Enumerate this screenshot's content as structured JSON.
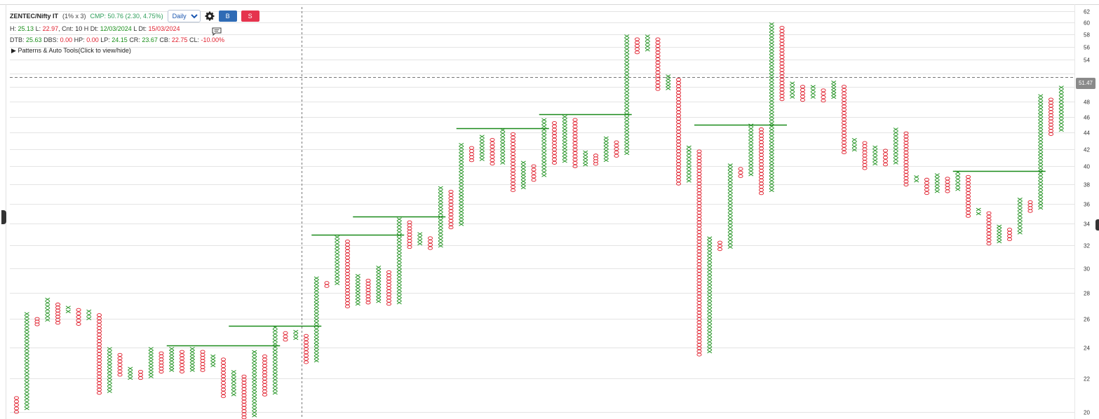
{
  "header": {
    "symbol": "ZENTEC/Nifty IT",
    "box_info": "(1% x 3)",
    "cmp": "CMP: 50.76 (2.30, 4.75%)",
    "interval": "Daily",
    "interval_options": [
      "Daily"
    ],
    "buy_label": "B",
    "sell_label": "S",
    "settings_icon": "gear-icon",
    "comment_icon": "comment-icon",
    "line2": {
      "h_label": "H:",
      "h_value": "25.13",
      "l_label": "L:",
      "l_value": "22.97",
      "cnt_label": "Cnt:",
      "cnt_value": "10",
      "hdt_label": "H Dt:",
      "hdt_value": "12/03/2024",
      "ldt_label": "L Dt:",
      "ldt_value": "15/03/2024"
    },
    "line3": {
      "dtb_label": "DTB:",
      "dtb_value": "25.63",
      "dbs_label": "DBS:",
      "dbs_value": "0.00",
      "hp_label": "HP:",
      "hp_value": "0.00",
      "lp_label": "LP:",
      "lp_value": "24.15",
      "cr_label": "CR:",
      "cr_value": "23.67",
      "cb_label": "CB:",
      "cb_value": "22.75",
      "cl_label": "CL:",
      "cl_value": "-10.00%"
    },
    "patterns_toggle": "Patterns & Auto Tools(Click to view/hide)",
    "patterns_icon": "triangle-right-icon"
  },
  "price_tag": "51.47",
  "colors": {
    "x": "#1a8f1a",
    "o": "#e0202e",
    "resistance": "#1a8a1a",
    "grid": "#e4e4e4",
    "axis_text": "#333333"
  },
  "chart_data": {
    "type": "point-and-figure",
    "box_size_pct": 1,
    "reversal": 3,
    "scale": "log",
    "ylim": [
      19.6,
      63
    ],
    "y_ticks": [
      20,
      22,
      24,
      26,
      28,
      30,
      32,
      34,
      36,
      38,
      40,
      42,
      44,
      46,
      48,
      50,
      52,
      54,
      56,
      58,
      60,
      62
    ],
    "y_tick_labels": [
      "20",
      "22",
      "24",
      "26",
      "28",
      "30",
      "32",
      "34",
      "36",
      "38",
      "40",
      "42",
      "44",
      "46",
      "48",
      "",
      "",
      "54",
      "56",
      "58",
      "60",
      "62"
    ],
    "current_price_line": 51.47,
    "grid": true,
    "columns": [
      {
        "t": "O",
        "hi": 20.9,
        "lo": 19.9
      },
      {
        "t": "X",
        "hi": 26.5,
        "lo": 20.1
      },
      {
        "t": "O",
        "hi": 26.1,
        "lo": 25.5
      },
      {
        "t": "X",
        "hi": 27.6,
        "lo": 25.8
      },
      {
        "t": "O",
        "hi": 27.2,
        "lo": 25.6
      },
      {
        "t": "X",
        "hi": 27.0,
        "lo": 26.4
      },
      {
        "t": "O",
        "hi": 26.8,
        "lo": 25.5
      },
      {
        "t": "X",
        "hi": 26.7,
        "lo": 25.9
      },
      {
        "t": "O",
        "hi": 26.4,
        "lo": 21.0
      },
      {
        "t": "X",
        "hi": 24.0,
        "lo": 21.1
      },
      {
        "t": "O",
        "hi": 23.6,
        "lo": 22.1
      },
      {
        "t": "X",
        "hi": 22.7,
        "lo": 21.9
      },
      {
        "t": "O",
        "hi": 22.5,
        "lo": 21.9
      },
      {
        "t": "X",
        "hi": 24.0,
        "lo": 22.0
      },
      {
        "t": "O",
        "hi": 23.7,
        "lo": 22.3
      },
      {
        "t": "X",
        "hi": 24.0,
        "lo": 22.4
      },
      {
        "t": "O",
        "hi": 23.8,
        "lo": 22.3
      },
      {
        "t": "X",
        "hi": 24.0,
        "lo": 22.4
      },
      {
        "t": "O",
        "hi": 23.8,
        "lo": 22.4
      },
      {
        "t": "X",
        "hi": 23.5,
        "lo": 22.7
      },
      {
        "t": "O",
        "hi": 23.3,
        "lo": 20.8
      },
      {
        "t": "X",
        "hi": 22.5,
        "lo": 20.9
      },
      {
        "t": "O",
        "hi": 22.2,
        "lo": 19.6
      },
      {
        "t": "X",
        "hi": 23.8,
        "lo": 19.7
      },
      {
        "t": "O",
        "hi": 23.5,
        "lo": 20.9
      },
      {
        "t": "X",
        "hi": 25.5,
        "lo": 21.0
      },
      {
        "t": "O",
        "hi": 25.1,
        "lo": 24.4
      },
      {
        "t": "X",
        "hi": 25.2,
        "lo": 24.5
      },
      {
        "t": "O",
        "hi": 24.9,
        "lo": 22.9
      },
      {
        "t": "X",
        "hi": 29.3,
        "lo": 23.0
      },
      {
        "t": "O",
        "hi": 28.9,
        "lo": 28.4
      },
      {
        "t": "X",
        "hi": 32.9,
        "lo": 28.6
      },
      {
        "t": "O",
        "hi": 32.5,
        "lo": 26.8
      },
      {
        "t": "X",
        "hi": 29.5,
        "lo": 27.0
      },
      {
        "t": "O",
        "hi": 29.1,
        "lo": 27.1
      },
      {
        "t": "X",
        "hi": 30.2,
        "lo": 27.2
      },
      {
        "t": "O",
        "hi": 29.8,
        "lo": 27.0
      },
      {
        "t": "X",
        "hi": 34.6,
        "lo": 27.1
      },
      {
        "t": "O",
        "hi": 34.3,
        "lo": 31.7
      },
      {
        "t": "X",
        "hi": 33.2,
        "lo": 32.0
      },
      {
        "t": "O",
        "hi": 32.8,
        "lo": 31.6
      },
      {
        "t": "X",
        "hi": 37.8,
        "lo": 31.8
      },
      {
        "t": "O",
        "hi": 37.4,
        "lo": 33.5
      },
      {
        "t": "X",
        "hi": 42.7,
        "lo": 33.8
      },
      {
        "t": "O",
        "hi": 42.3,
        "lo": 40.5
      },
      {
        "t": "X",
        "hi": 43.7,
        "lo": 40.6
      },
      {
        "t": "O",
        "hi": 43.3,
        "lo": 40.1
      },
      {
        "t": "X",
        "hi": 44.5,
        "lo": 40.2
      },
      {
        "t": "O",
        "hi": 44.0,
        "lo": 37.2
      },
      {
        "t": "X",
        "hi": 40.6,
        "lo": 37.5
      },
      {
        "t": "O",
        "hi": 40.2,
        "lo": 38.3
      },
      {
        "t": "X",
        "hi": 45.8,
        "lo": 38.8
      },
      {
        "t": "O",
        "hi": 45.4,
        "lo": 40.2
      },
      {
        "t": "X",
        "hi": 46.2,
        "lo": 40.4
      },
      {
        "t": "O",
        "hi": 45.8,
        "lo": 39.8
      },
      {
        "t": "X",
        "hi": 41.8,
        "lo": 40.0
      },
      {
        "t": "O",
        "hi": 41.4,
        "lo": 40.1
      },
      {
        "t": "X",
        "hi": 43.5,
        "lo": 40.5
      },
      {
        "t": "O",
        "hi": 43.0,
        "lo": 41.0
      },
      {
        "t": "X",
        "hi": 58.0,
        "lo": 41.3
      },
      {
        "t": "O",
        "hi": 57.5,
        "lo": 54.9
      },
      {
        "t": "X",
        "hi": 58.0,
        "lo": 55.3
      },
      {
        "t": "O",
        "hi": 57.5,
        "lo": 49.5
      },
      {
        "t": "X",
        "hi": 51.8,
        "lo": 49.6
      },
      {
        "t": "O",
        "hi": 51.3,
        "lo": 37.9
      },
      {
        "t": "X",
        "hi": 42.4,
        "lo": 38.2
      },
      {
        "t": "O",
        "hi": 41.9,
        "lo": 23.4
      },
      {
        "t": "X",
        "hi": 32.8,
        "lo": 23.6
      },
      {
        "t": "O",
        "hi": 32.4,
        "lo": 31.5
      },
      {
        "t": "X",
        "hi": 40.3,
        "lo": 31.7
      },
      {
        "t": "O",
        "hi": 39.9,
        "lo": 38.7
      },
      {
        "t": "X",
        "hi": 45.1,
        "lo": 38.9
      },
      {
        "t": "O",
        "hi": 44.6,
        "lo": 36.9
      },
      {
        "t": "X",
        "hi": 60.0,
        "lo": 37.2
      },
      {
        "t": "O",
        "hi": 59.4,
        "lo": 48.1
      },
      {
        "t": "X",
        "hi": 50.8,
        "lo": 48.4
      },
      {
        "t": "O",
        "hi": 50.3,
        "lo": 48.0
      },
      {
        "t": "X",
        "hi": 50.3,
        "lo": 48.4
      },
      {
        "t": "O",
        "hi": 49.8,
        "lo": 47.9
      },
      {
        "t": "X",
        "hi": 50.9,
        "lo": 48.4
      },
      {
        "t": "O",
        "hi": 50.3,
        "lo": 41.4
      },
      {
        "t": "X",
        "hi": 43.3,
        "lo": 41.7
      },
      {
        "t": "O",
        "hi": 42.9,
        "lo": 39.6
      },
      {
        "t": "X",
        "hi": 42.4,
        "lo": 40.1
      },
      {
        "t": "O",
        "hi": 42.0,
        "lo": 40.0
      },
      {
        "t": "X",
        "hi": 44.6,
        "lo": 40.2
      },
      {
        "t": "O",
        "hi": 44.1,
        "lo": 37.8
      },
      {
        "t": "X",
        "hi": 39.0,
        "lo": 38.2
      },
      {
        "t": "O",
        "hi": 38.7,
        "lo": 36.9
      },
      {
        "t": "X",
        "hi": 39.2,
        "lo": 37.1
      },
      {
        "t": "O",
        "hi": 38.8,
        "lo": 37.1
      },
      {
        "t": "X",
        "hi": 39.5,
        "lo": 37.3
      },
      {
        "t": "O",
        "hi": 39.0,
        "lo": 34.6
      },
      {
        "t": "X",
        "hi": 35.6,
        "lo": 34.8
      },
      {
        "t": "O",
        "hi": 35.2,
        "lo": 32.0
      },
      {
        "t": "X",
        "hi": 33.9,
        "lo": 32.2
      },
      {
        "t": "O",
        "hi": 33.6,
        "lo": 32.4
      },
      {
        "t": "X",
        "hi": 36.6,
        "lo": 33.0
      },
      {
        "t": "O",
        "hi": 36.3,
        "lo": 35.1
      },
      {
        "t": "X",
        "hi": 49.0,
        "lo": 35.4
      },
      {
        "t": "O",
        "hi": 48.5,
        "lo": 43.6
      },
      {
        "t": "X",
        "hi": 50.2,
        "lo": 44.1
      }
    ],
    "resistance_lines": [
      {
        "price": 24.1,
        "from": 15,
        "to": 25
      },
      {
        "price": 25.5,
        "from": 21,
        "to": 29
      },
      {
        "price": 33.0,
        "from": 29,
        "to": 37
      },
      {
        "price": 34.7,
        "from": 33,
        "to": 41
      },
      {
        "price": 44.5,
        "from": 43,
        "to": 51
      },
      {
        "price": 46.3,
        "from": 51,
        "to": 59
      },
      {
        "price": 45.0,
        "from": 66,
        "to": 74
      },
      {
        "price": 39.5,
        "from": 91,
        "to": 99
      }
    ]
  }
}
